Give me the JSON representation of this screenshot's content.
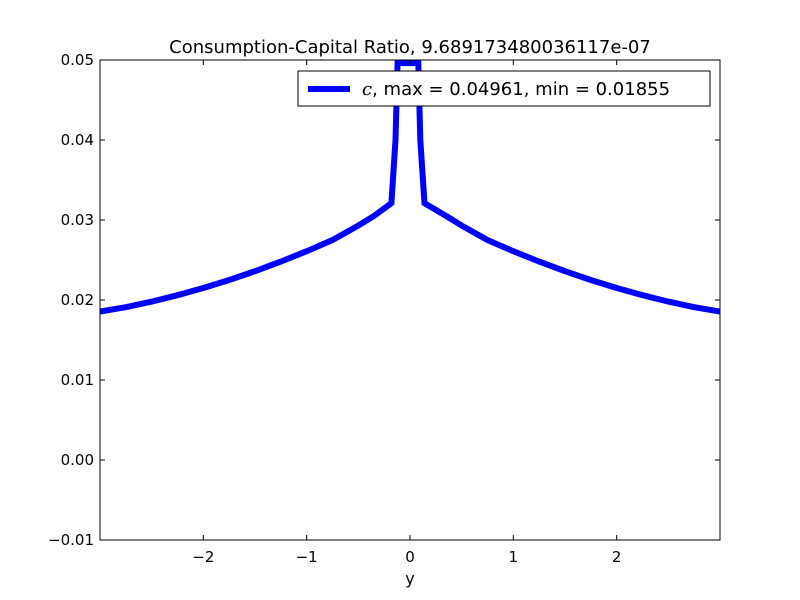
{
  "chart_data": {
    "type": "line",
    "title": "Consumption-Capital Ratio, 9.689173480036117e-07",
    "xlabel": "y",
    "ylabel": "",
    "xlim": [
      -3.0,
      3.0
    ],
    "ylim": [
      -0.01,
      0.05
    ],
    "xticks": [
      -2,
      -1,
      0,
      1,
      2
    ],
    "xtick_labels": [
      "−2",
      "−1",
      "0",
      "1",
      "2"
    ],
    "yticks": [
      -0.01,
      0.0,
      0.01,
      0.02,
      0.03,
      0.04,
      0.05
    ],
    "ytick_labels": [
      "−0.01",
      "0.00",
      "0.01",
      "0.02",
      "0.03",
      "0.04",
      "0.05"
    ],
    "grid": false,
    "legend": {
      "location": "upper right",
      "series_symbol": "c",
      "series_text": ", max = 0.04961, min = 0.01855"
    },
    "series": [
      {
        "color": "#0000ff",
        "x": [
          -3.0,
          -2.75,
          -2.5,
          -2.25,
          -2.0,
          -1.75,
          -1.5,
          -1.25,
          -1.0,
          -0.75,
          -0.5,
          -0.35,
          -0.18,
          -0.14,
          -0.12,
          -0.08,
          0.0,
          0.08,
          0.1,
          0.14,
          0.35,
          0.5,
          0.75,
          1.0,
          1.25,
          1.5,
          1.75,
          2.0,
          2.25,
          2.5,
          2.75,
          3.0
        ],
        "y": [
          0.01855,
          0.0191,
          0.0198,
          0.0206,
          0.0215,
          0.0225,
          0.0236,
          0.0248,
          0.0261,
          0.0275,
          0.0293,
          0.0305,
          0.0321,
          0.04,
          0.04961,
          0.04961,
          0.04961,
          0.04961,
          0.04,
          0.0321,
          0.0305,
          0.0293,
          0.0275,
          0.0261,
          0.0248,
          0.0236,
          0.0225,
          0.0215,
          0.0206,
          0.0198,
          0.0191,
          0.01855
        ]
      }
    ]
  }
}
